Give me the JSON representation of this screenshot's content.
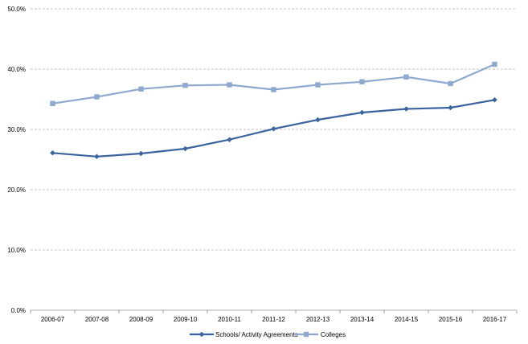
{
  "chart_data": {
    "type": "line",
    "categories": [
      "2006-07",
      "2007-08",
      "2008-09",
      "2009-10",
      "2010-11",
      "2011-12",
      "2012-13",
      "2013-14",
      "2014-15",
      "2015-16",
      "2016-17"
    ],
    "series": [
      {
        "name": "Schools/ Activity Agreements",
        "values": [
          26.1,
          25.5,
          26.0,
          26.8,
          28.3,
          30.1,
          31.6,
          32.8,
          33.4,
          33.6,
          34.9
        ],
        "color": "#3a64a0",
        "marker": "diamond"
      },
      {
        "name": "Colleges",
        "values": [
          34.3,
          35.4,
          36.7,
          37.3,
          37.4,
          36.6,
          37.4,
          37.9,
          38.7,
          37.6,
          40.8
        ],
        "color": "#8fa8cf",
        "marker": "square"
      }
    ],
    "y_ticks": [
      "0.0%",
      "10.0%",
      "20.0%",
      "30.0%",
      "40.0%",
      "50.0%"
    ],
    "ylim": [
      0,
      50
    ],
    "grid": "horizontal dashed",
    "legend_position": "bottom"
  }
}
